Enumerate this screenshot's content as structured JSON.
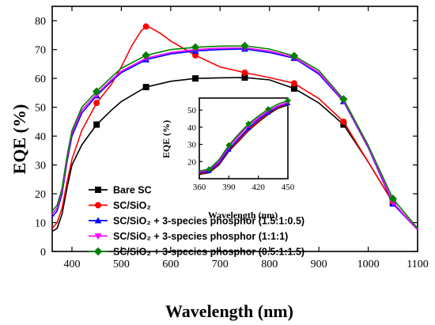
{
  "chart_data": [
    {
      "type": "line",
      "xlabel": "Wavelength (nm)",
      "ylabel": "EQE (%)",
      "xlim": [
        360,
        1100
      ],
      "ylim": [
        0,
        85
      ],
      "xticks": [
        400,
        500,
        600,
        700,
        800,
        900,
        1000,
        1100
      ],
      "yticks": [
        0,
        10,
        20,
        30,
        40,
        50,
        60,
        70,
        80
      ],
      "legend_position": "lower-left",
      "series": [
        {
          "name": "Bare SC",
          "color": "#000000",
          "marker": "square",
          "x": [
            360,
            370,
            380,
            390,
            400,
            420,
            450,
            480,
            500,
            550,
            600,
            650,
            700,
            750,
            800,
            850,
            900,
            950,
            1000,
            1050,
            1100
          ],
          "y": [
            7,
            8,
            13,
            22,
            30,
            37,
            44,
            49,
            52,
            57,
            59,
            60,
            60.2,
            60.3,
            59.5,
            56.5,
            51.5,
            44,
            31,
            17,
            7.5
          ],
          "marker_x": [
            450,
            550,
            650,
            750,
            850,
            950,
            1050
          ]
        },
        {
          "name": "SC/SiO₂",
          "color": "#ff0000",
          "marker": "circle",
          "x": [
            360,
            370,
            380,
            390,
            400,
            420,
            450,
            480,
            500,
            520,
            540,
            550,
            560,
            580,
            600,
            650,
            700,
            750,
            800,
            850,
            900,
            950,
            1000,
            1050,
            1100
          ],
          "y": [
            8,
            10,
            15,
            24,
            32,
            42,
            51.5,
            58,
            64,
            71,
            76.5,
            78,
            77.5,
            75.5,
            73,
            68,
            64,
            62,
            60.3,
            58.3,
            53,
            45,
            31,
            17,
            7.5
          ],
          "marker_x": [
            450,
            550,
            650,
            750,
            850,
            950,
            1050
          ]
        },
        {
          "name": "SC/SiO₂ + 3-species phosphor (1.5:1:0.5)",
          "color": "#0000ff",
          "marker": "triangle-up",
          "x": [
            360,
            370,
            380,
            390,
            400,
            420,
            450,
            480,
            500,
            550,
            600,
            650,
            700,
            750,
            800,
            850,
            900,
            950,
            1000,
            1050,
            1100
          ],
          "y": [
            12,
            14,
            20,
            31,
            40,
            48,
            54,
            59,
            62,
            66.5,
            68.5,
            69.5,
            70,
            70.2,
            69,
            67,
            61.5,
            52,
            36,
            16.5,
            7.5
          ],
          "marker_x": [
            450,
            550,
            650,
            750,
            850,
            950,
            1050
          ]
        },
        {
          "name": "SC/SiO₂ + 3-species phosphor (1:1:1)",
          "color": "#ff00ff",
          "marker": "triangle-down",
          "x": [
            360,
            370,
            380,
            390,
            400,
            420,
            450,
            480,
            500,
            550,
            600,
            650,
            700,
            750,
            800,
            850,
            900,
            950,
            1000,
            1050,
            1100
          ],
          "y": [
            13,
            15,
            21,
            32,
            41,
            49,
            54.5,
            59.5,
            62.5,
            67,
            69,
            70,
            70.5,
            70.6,
            69.5,
            67.3,
            62,
            52.3,
            36.3,
            17,
            7.5
          ],
          "marker_x": [
            450,
            550,
            650,
            750,
            850,
            950,
            1050
          ]
        },
        {
          "name": "SC/SiO₂ + 3-species phosphor (0.5:1:1.5)",
          "color": "#008000",
          "marker": "diamond",
          "x": [
            360,
            370,
            380,
            390,
            400,
            420,
            450,
            480,
            500,
            550,
            600,
            650,
            700,
            750,
            800,
            850,
            900,
            950,
            1000,
            1050,
            1100
          ],
          "y": [
            14,
            16,
            22,
            33,
            42,
            50,
            55.5,
            60.5,
            63.5,
            68,
            70,
            70.8,
            71.2,
            71.3,
            70.2,
            67.8,
            62.8,
            52.8,
            36.8,
            18.3,
            8
          ],
          "marker_x": [
            450,
            550,
            650,
            750,
            850,
            950,
            1050
          ]
        }
      ]
    },
    {
      "type": "line",
      "inset": true,
      "xlabel": "Wavelength (nm)",
      "ylabel": "EQE (%)",
      "xlim": [
        360,
        450
      ],
      "ylim": [
        10,
        57
      ],
      "xticks": [
        360,
        390,
        420,
        450
      ],
      "yticks": [
        20,
        30,
        40,
        50
      ],
      "series": [
        {
          "color": "#000000",
          "x": [
            360,
            370,
            380,
            390,
            400,
            410,
            420,
            430,
            440,
            450
          ],
          "y": [
            12.5,
            13.5,
            18,
            26,
            32,
            38,
            43,
            47.5,
            51,
            53
          ]
        },
        {
          "color": "#ff0000",
          "x": [
            360,
            370,
            380,
            390,
            400,
            410,
            420,
            430,
            440,
            450
          ],
          "y": [
            13,
            14,
            18.5,
            26.5,
            32.5,
            38.5,
            43.5,
            48,
            51.5,
            53.5
          ]
        },
        {
          "color": "#0000ff",
          "marker": "triangle-up",
          "x": [
            360,
            370,
            380,
            390,
            400,
            410,
            420,
            430,
            440,
            450
          ],
          "y": [
            13.5,
            14.5,
            19,
            27,
            33.5,
            39.5,
            44.5,
            48.5,
            52,
            54
          ],
          "marker_x": [
            370,
            390,
            410,
            430,
            450
          ]
        },
        {
          "color": "#ff00ff",
          "marker": "triangle-down",
          "x": [
            360,
            370,
            380,
            390,
            400,
            410,
            420,
            430,
            440,
            450
          ],
          "y": [
            14,
            15,
            20,
            28.5,
            35,
            41,
            45.5,
            49.5,
            52.5,
            54.5
          ],
          "marker_x": [
            370,
            390,
            410,
            430,
            450
          ]
        },
        {
          "color": "#008000",
          "marker": "diamond",
          "x": [
            360,
            370,
            380,
            390,
            400,
            410,
            420,
            430,
            440,
            450
          ],
          "y": [
            14.5,
            15.5,
            21,
            29.5,
            36,
            42,
            46.5,
            50.5,
            53.5,
            55.5
          ],
          "marker_x": [
            370,
            390,
            410,
            430,
            450
          ]
        }
      ]
    }
  ]
}
